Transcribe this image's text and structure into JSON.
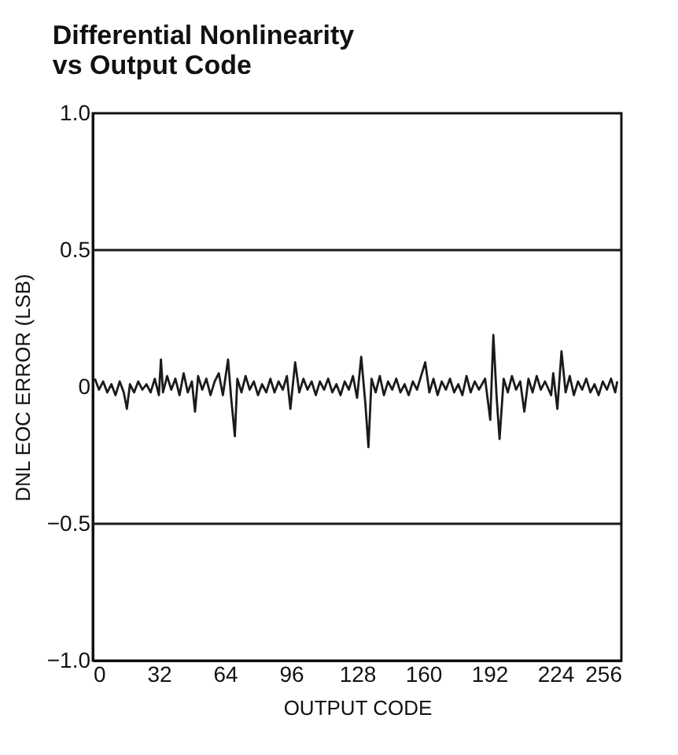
{
  "chart_data": {
    "type": "line",
    "title": "Differential Nonlinearity\nvs Output Code",
    "xlabel": "OUTPUT CODE",
    "ylabel": "DNL EOC ERROR (LSB)",
    "x": [
      1,
      3,
      5,
      7,
      9,
      11,
      13,
      15,
      16.5,
      18,
      20,
      22,
      24,
      26,
      28,
      30,
      32,
      33,
      34,
      36,
      38,
      40,
      42,
      44,
      46,
      48,
      49.5,
      51,
      53,
      55,
      57,
      59,
      61,
      63,
      65.5,
      67,
      68.8,
      70,
      72,
      74,
      76,
      78,
      80,
      82,
      84,
      86,
      88,
      90,
      92,
      94,
      95.7,
      98,
      100,
      102,
      104,
      106,
      108,
      110,
      112,
      114,
      116,
      118,
      120,
      122,
      124,
      126,
      128,
      130,
      132,
      133.5,
      135,
      137,
      139,
      141,
      143,
      145,
      147,
      149,
      151,
      153,
      155,
      157,
      159,
      161,
      163,
      165,
      167,
      169,
      171,
      173,
      175,
      177,
      179,
      181,
      183,
      185,
      187,
      190,
      192.5,
      194,
      195.6,
      197,
      199,
      201,
      203,
      205,
      207,
      209,
      211,
      213,
      215,
      217,
      219,
      222,
      223,
      225,
      227,
      229,
      231,
      233,
      235,
      237,
      239,
      241,
      243,
      245,
      247,
      249,
      251,
      253,
      254
    ],
    "series": [
      {
        "color": "#1a1a1a",
        "values": [
          0.03,
          -0.01,
          0.02,
          -0.02,
          0.01,
          -0.03,
          0.02,
          -0.02,
          -0.08,
          0.01,
          -0.02,
          0.02,
          -0.01,
          0.01,
          -0.02,
          0.03,
          -0.03,
          0.1,
          -0.02,
          0.04,
          -0.01,
          0.03,
          -0.03,
          0.05,
          -0.02,
          0.02,
          -0.09,
          0.04,
          -0.01,
          0.03,
          -0.03,
          0.02,
          0.05,
          -0.03,
          0.1,
          -0.04,
          -0.18,
          0.03,
          -0.02,
          0.04,
          -0.01,
          0.02,
          -0.03,
          0.01,
          -0.02,
          0.03,
          -0.02,
          0.02,
          -0.01,
          0.04,
          -0.08,
          0.09,
          -0.02,
          0.03,
          -0.01,
          0.02,
          -0.03,
          0.02,
          -0.01,
          0.03,
          -0.02,
          0.01,
          -0.03,
          0.02,
          -0.01,
          0.04,
          -0.04,
          0.11,
          -0.06,
          -0.22,
          0.03,
          -0.02,
          0.04,
          -0.03,
          0.02,
          -0.01,
          0.03,
          -0.02,
          0.01,
          -0.03,
          0.02,
          -0.01,
          0.04,
          0.09,
          -0.02,
          0.03,
          -0.03,
          0.02,
          -0.01,
          0.03,
          -0.02,
          0.01,
          -0.03,
          0.04,
          -0.02,
          0.02,
          -0.01,
          0.03,
          -0.12,
          0.19,
          -0.04,
          -0.19,
          0.03,
          -0.02,
          0.04,
          -0.01,
          0.02,
          -0.09,
          0.03,
          -0.02,
          0.04,
          -0.01,
          0.02,
          -0.03,
          0.05,
          -0.08,
          0.13,
          -0.02,
          0.04,
          -0.03,
          0.02,
          -0.01,
          0.03,
          -0.02,
          0.01,
          -0.03,
          0.02,
          -0.01,
          0.03,
          -0.02,
          0.02
        ]
      }
    ],
    "xlim": [
      0,
      256
    ],
    "xticks": [
      0,
      32,
      64,
      96,
      128,
      160,
      192,
      224,
      256
    ],
    "ylim": [
      -1.0,
      1.0
    ],
    "yticks": [
      {
        "value": -1,
        "label": "−1.0"
      },
      {
        "value": -0.5,
        "label": "−0.5"
      },
      0,
      0.5,
      {
        "value": 1,
        "label": "1.0"
      }
    ],
    "ref_lines": [
      {
        "axis": "y",
        "value": 0.5,
        "color": "#1a1a1a"
      },
      {
        "axis": "y",
        "value": -0.5,
        "color": "#1a1a1a"
      }
    ],
    "grid": false,
    "marker": "none",
    "line_style": "solid"
  }
}
